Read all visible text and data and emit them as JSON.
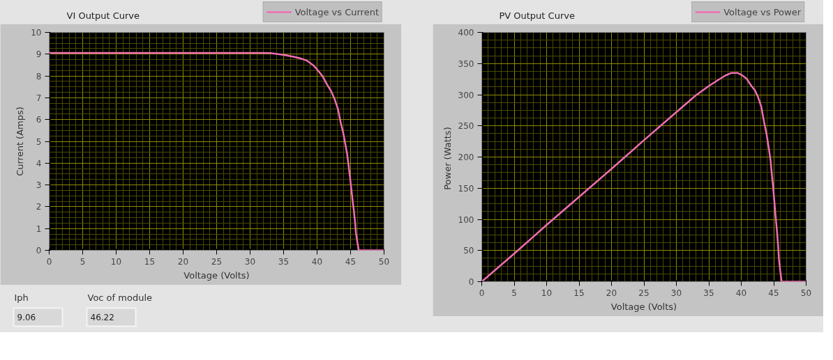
{
  "chart_data": [
    {
      "type": "line",
      "title": "VI Output Curve",
      "xlabel": "Voltage (Volts)",
      "ylabel": "Current (Amps)",
      "legend": "top right",
      "grid": true,
      "x": [
        0,
        5,
        10,
        15,
        20,
        25,
        30,
        32,
        33,
        35,
        36.5,
        37.6,
        38.5,
        39.4,
        40,
        40.8,
        41.5,
        42.1,
        42.6,
        43.1,
        43.5,
        43.9,
        44.2,
        44.5,
        44.7,
        44.9,
        45.1,
        45.3,
        45.5,
        45.7,
        45.8,
        46,
        46.22,
        50
      ],
      "series": [
        {
          "name": "Voltage vs Current",
          "color": "#f06eb4",
          "values": [
            9.06,
            9.06,
            9.06,
            9.06,
            9.06,
            9.06,
            9.06,
            9.06,
            9.05,
            8.97,
            8.88,
            8.8,
            8.7,
            8.5,
            8.3,
            8.0,
            7.6,
            7.3,
            6.95,
            6.5,
            5.9,
            5.4,
            4.9,
            4.4,
            3.9,
            3.4,
            2.85,
            2.3,
            1.8,
            1.2,
            0.8,
            0.4,
            0,
            0
          ]
        }
      ],
      "xlim": [
        0,
        50
      ],
      "ylim": [
        0,
        10
      ],
      "xticks": [
        0,
        {
          "value": 1,
          "label": null
        },
        {
          "value": 2,
          "label": null
        },
        {
          "value": 3,
          "label": null
        },
        {
          "value": 4,
          "label": null
        },
        5,
        {
          "value": 6,
          "label": null
        },
        {
          "value": 7,
          "label": null
        },
        {
          "value": 8,
          "label": null
        },
        {
          "value": 9,
          "label": null
        },
        10,
        {
          "value": 11,
          "label": null
        },
        {
          "value": 12,
          "label": null
        },
        {
          "value": 13,
          "label": null
        },
        {
          "value": 14,
          "label": null
        },
        15,
        {
          "value": 16,
          "label": null
        },
        {
          "value": 17,
          "label": null
        },
        {
          "value": 18,
          "label": null
        },
        {
          "value": 19,
          "label": null
        },
        20,
        {
          "value": 21,
          "label": null
        },
        {
          "value": 22,
          "label": null
        },
        {
          "value": 23,
          "label": null
        },
        {
          "value": 24,
          "label": null
        },
        25,
        {
          "value": 26,
          "label": null
        },
        {
          "value": 27,
          "label": null
        },
        {
          "value": 28,
          "label": null
        },
        {
          "value": 29,
          "label": null
        },
        30,
        {
          "value": 31,
          "label": null
        },
        {
          "value": 32,
          "label": null
        },
        {
          "value": 33,
          "label": null
        },
        {
          "value": 34,
          "label": null
        },
        35,
        {
          "value": 36,
          "label": null
        },
        {
          "value": 37,
          "label": null
        },
        {
          "value": 38,
          "label": null
        },
        {
          "value": 39,
          "label": null
        },
        40,
        {
          "value": 41,
          "label": null
        },
        {
          "value": 42,
          "label": null
        },
        {
          "value": 43,
          "label": null
        },
        {
          "value": 44,
          "label": null
        },
        45,
        {
          "value": 46,
          "label": null
        },
        {
          "value": 47,
          "label": null
        },
        {
          "value": 48,
          "label": null
        },
        {
          "value": 49,
          "label": null
        },
        50
      ],
      "yticks": [
        0,
        {
          "value": 0.25,
          "label": null
        },
        {
          "value": 0.5,
          "label": null
        },
        {
          "value": 0.75,
          "label": null
        },
        1,
        {
          "value": 1.25,
          "label": null
        },
        {
          "value": 1.5,
          "label": null
        },
        {
          "value": 1.75,
          "label": null
        },
        2,
        {
          "value": 2.25,
          "label": null
        },
        {
          "value": 2.5,
          "label": null
        },
        {
          "value": 2.75,
          "label": null
        },
        3,
        {
          "value": 3.25,
          "label": null
        },
        {
          "value": 3.5,
          "label": null
        },
        {
          "value": 3.75,
          "label": null
        },
        4,
        {
          "value": 4.25,
          "label": null
        },
        {
          "value": 4.5,
          "label": null
        },
        {
          "value": 4.75,
          "label": null
        },
        5,
        {
          "value": 5.25,
          "label": null
        },
        {
          "value": 5.5,
          "label": null
        },
        {
          "value": 5.75,
          "label": null
        },
        6,
        {
          "value": 6.25,
          "label": null
        },
        {
          "value": 6.5,
          "label": null
        },
        {
          "value": 6.75,
          "label": null
        },
        7,
        {
          "value": 7.25,
          "label": null
        },
        {
          "value": 7.5,
          "label": null
        },
        {
          "value": 7.75,
          "label": null
        },
        8,
        {
          "value": 8.25,
          "label": null
        },
        {
          "value": 8.5,
          "label": null
        },
        {
          "value": 8.75,
          "label": null
        },
        9,
        {
          "value": 9.25,
          "label": null
        },
        {
          "value": 9.5,
          "label": null
        },
        {
          "value": 9.75,
          "label": null
        },
        10
      ]
    },
    {
      "type": "line",
      "title": "PV Output Curve",
      "xlabel": "Voltage (Volts)",
      "ylabel": "Power  (Watts)",
      "legend": "top right",
      "grid": true,
      "x": [
        0,
        5,
        10,
        15,
        20,
        25,
        30,
        32,
        33,
        35,
        36.5,
        37.6,
        38.5,
        39.4,
        40,
        40.8,
        41.5,
        42.1,
        42.6,
        43.1,
        43.5,
        43.9,
        44.2,
        44.5,
        44.7,
        44.9,
        45.1,
        45.3,
        45.5,
        45.7,
        45.8,
        46,
        46.22,
        50
      ],
      "series": [
        {
          "name": "Voltage vs Power",
          "color": "#f06eb4",
          "values": [
            0,
            45,
            91,
            136,
            181,
            227,
            272,
            290,
            299,
            314,
            324,
            331,
            335,
            335,
            332,
            326,
            315,
            307,
            296,
            280,
            257,
            237,
            217,
            196,
            174,
            153,
            129,
            104,
            82,
            55,
            37,
            18,
            0,
            0
          ]
        }
      ],
      "xlim": [
        0,
        50
      ],
      "ylim": [
        0,
        400
      ],
      "xticks": [
        0,
        {
          "value": 1,
          "label": null
        },
        {
          "value": 2,
          "label": null
        },
        {
          "value": 3,
          "label": null
        },
        {
          "value": 4,
          "label": null
        },
        5,
        {
          "value": 6,
          "label": null
        },
        {
          "value": 7,
          "label": null
        },
        {
          "value": 8,
          "label": null
        },
        {
          "value": 9,
          "label": null
        },
        10,
        {
          "value": 11,
          "label": null
        },
        {
          "value": 12,
          "label": null
        },
        {
          "value": 13,
          "label": null
        },
        {
          "value": 14,
          "label": null
        },
        15,
        {
          "value": 16,
          "label": null
        },
        {
          "value": 17,
          "label": null
        },
        {
          "value": 18,
          "label": null
        },
        {
          "value": 19,
          "label": null
        },
        20,
        {
          "value": 21,
          "label": null
        },
        {
          "value": 22,
          "label": null
        },
        {
          "value": 23,
          "label": null
        },
        {
          "value": 24,
          "label": null
        },
        25,
        {
          "value": 26,
          "label": null
        },
        {
          "value": 27,
          "label": null
        },
        {
          "value": 28,
          "label": null
        },
        {
          "value": 29,
          "label": null
        },
        30,
        {
          "value": 31,
          "label": null
        },
        {
          "value": 32,
          "label": null
        },
        {
          "value": 33,
          "label": null
        },
        {
          "value": 34,
          "label": null
        },
        35,
        {
          "value": 36,
          "label": null
        },
        {
          "value": 37,
          "label": null
        },
        {
          "value": 38,
          "label": null
        },
        {
          "value": 39,
          "label": null
        },
        40,
        {
          "value": 41,
          "label": null
        },
        {
          "value": 42,
          "label": null
        },
        {
          "value": 43,
          "label": null
        },
        {
          "value": 44,
          "label": null
        },
        45,
        {
          "value": 46,
          "label": null
        },
        {
          "value": 47,
          "label": null
        },
        {
          "value": 48,
          "label": null
        },
        {
          "value": 49,
          "label": null
        },
        50
      ],
      "yticks": [
        0,
        {
          "value": 12.5,
          "label": null
        },
        {
          "value": 25,
          "label": null
        },
        {
          "value": 37.5,
          "label": null
        },
        50,
        {
          "value": 62.5,
          "label": null
        },
        {
          "value": 75,
          "label": null
        },
        {
          "value": 87.5,
          "label": null
        },
        100,
        {
          "value": 112.5,
          "label": null
        },
        {
          "value": 125,
          "label": null
        },
        {
          "value": 137.5,
          "label": null
        },
        150,
        {
          "value": 162.5,
          "label": null
        },
        {
          "value": 175,
          "label": null
        },
        {
          "value": 187.5,
          "label": null
        },
        200,
        {
          "value": 212.5,
          "label": null
        },
        {
          "value": 225,
          "label": null
        },
        {
          "value": 237.5,
          "label": null
        },
        250,
        {
          "value": 262.5,
          "label": null
        },
        {
          "value": 275,
          "label": null
        },
        {
          "value": 287.5,
          "label": null
        },
        300,
        {
          "value": 312.5,
          "label": null
        },
        {
          "value": 325,
          "label": null
        },
        {
          "value": 337.5,
          "label": null
        },
        350,
        {
          "value": 362.5,
          "label": null
        },
        {
          "value": 375,
          "label": null
        },
        {
          "value": 387.5,
          "label": null
        },
        400
      ]
    },
    {
      "type": "other",
      "annotations": [
        "Iph",
        "9.06",
        "Voc of module",
        "46.22"
      ]
    }
  ]
}
